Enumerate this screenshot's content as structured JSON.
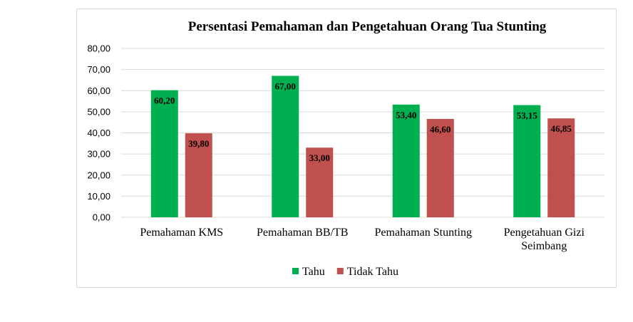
{
  "chart_data": {
    "type": "bar",
    "title": "Persentasi Pemahaman dan Pengetahuan Orang Tua Stunting",
    "categories": [
      [
        "Pemahaman KMS"
      ],
      [
        "Pemahaman BB/TB"
      ],
      [
        "Pemahaman Stunting"
      ],
      [
        "Pengetahuan Gizi",
        "Seimbang"
      ]
    ],
    "series": [
      {
        "name": "Tahu",
        "color": "#00b050",
        "values": [
          60.2,
          67.0,
          53.4,
          53.15
        ],
        "labels": [
          "60,20",
          "67,00",
          "53,40",
          "53,15"
        ]
      },
      {
        "name": "Tidak Tahu",
        "color": "#c0504d",
        "values": [
          39.8,
          33.0,
          46.6,
          46.85
        ],
        "labels": [
          "39,80",
          "33,00",
          "46,60",
          "46,85"
        ]
      }
    ],
    "ylim": [
      0,
      80
    ],
    "yticks": [
      "0,00",
      "10,00",
      "20,00",
      "30,00",
      "40,00",
      "50,00",
      "60,00",
      "70,00",
      "80,00"
    ],
    "grid": true,
    "legend_position": "bottom"
  }
}
